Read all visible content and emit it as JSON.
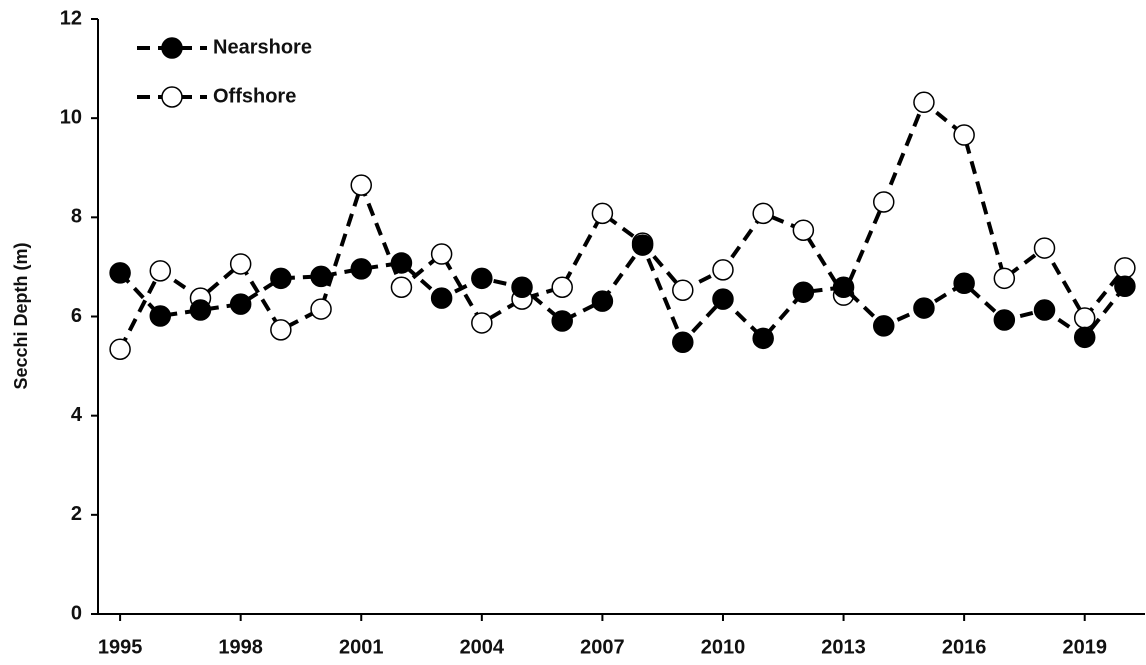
{
  "chart_data": {
    "type": "line",
    "y_label": "Secchi Depth (m)",
    "x": [
      1995,
      1996,
      1997,
      1998,
      1999,
      2000,
      2001,
      2002,
      2003,
      2004,
      2005,
      2006,
      2007,
      2008,
      2009,
      2010,
      2011,
      2012,
      2013,
      2014,
      2015,
      2016,
      2017,
      2018,
      2019,
      2020
    ],
    "series": [
      {
        "name": "Nearshore",
        "color": "#000000",
        "marker_fill": "#000000",
        "values": [
          6.88,
          6.01,
          6.13,
          6.25,
          6.77,
          6.81,
          6.96,
          7.08,
          6.37,
          6.77,
          6.59,
          5.91,
          6.31,
          7.44,
          5.48,
          6.35,
          5.56,
          6.49,
          6.59,
          5.81,
          6.17,
          6.67,
          5.93,
          6.13,
          5.58,
          6.61
        ]
      },
      {
        "name": "Offshore",
        "color": "#000000",
        "marker_fill": "#ffffff",
        "values": [
          5.34,
          6.92,
          6.37,
          7.06,
          5.73,
          6.15,
          8.65,
          6.59,
          7.26,
          5.87,
          6.35,
          6.59,
          8.08,
          7.48,
          6.53,
          6.94,
          8.08,
          7.74,
          6.43,
          8.31,
          10.32,
          9.66,
          6.77,
          7.38,
          5.97,
          6.98
        ]
      }
    ],
    "xlim": [
      1994.5,
      2020.5
    ],
    "xticks": [
      1995,
      1998,
      2001,
      2004,
      2007,
      2010,
      2013,
      2016,
      2019
    ],
    "ylim": [
      0,
      12
    ],
    "yticks": [
      0,
      2,
      4,
      6,
      8,
      10,
      12
    ],
    "legend": "upper left",
    "line_style": "dashed"
  }
}
